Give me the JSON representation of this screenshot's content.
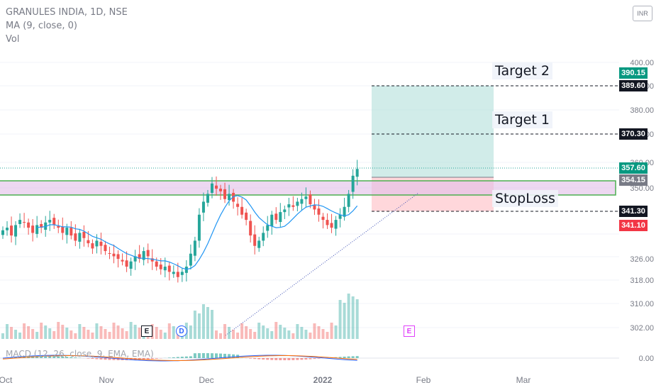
{
  "legend": {
    "symbol": "GRANULES INDIA, 1D, NSE",
    "ma": "MA (9, close, 0)",
    "vol": "Vol"
  },
  "currency_button": "INR",
  "macd_label": "MACD (12, 26, close, 9, EMA, EMA)",
  "notes": {
    "target2": "Target 2",
    "target1": "Target 1",
    "stoploss": "StopLoss"
  },
  "price_tags": [
    {
      "value": "390.15",
      "color": "#089981"
    },
    {
      "value": "389.60",
      "color": "#131722"
    },
    {
      "value": "370.30",
      "color": "#131722"
    },
    {
      "value": "357.60",
      "color": "#089981"
    },
    {
      "value": "354.15",
      "color": "#787b86"
    },
    {
      "value": "341.30",
      "color": "#131722"
    },
    {
      "value": "341.10",
      "color": "#f23645"
    }
  ],
  "events": [
    {
      "label": "E",
      "color": "#131722"
    },
    {
      "label": "D",
      "color": "#2962ff"
    },
    {
      "label": "E",
      "color": "#e040fb"
    }
  ],
  "colors": {
    "up": "#26a69a",
    "down": "#ef5350",
    "ma": "#2196f3",
    "zone_border": "#4caf50",
    "zone_fill": "#e1bee7",
    "target_fill": "#b2dfdb",
    "stop_fill": "#ffcdd2"
  },
  "chart_data": {
    "type": "candlestick",
    "symbol": "GRANULES INDIA",
    "interval": "1D",
    "exchange": "NSE",
    "price_axis_ticks": [
      "400.00",
      "390.00",
      "380.00",
      "370.00",
      "360.00",
      "350.00",
      "326.00",
      "318.00",
      "310.00",
      "302.00",
      "0.00"
    ],
    "time_axis_ticks": [
      "Oct",
      "Nov",
      "Dec",
      "2022",
      "Feb",
      "Mar"
    ],
    "price_levels": {
      "target_2": 389.6,
      "target_1": 370.3,
      "entry": 354.15,
      "stop_loss": 341.3,
      "last_close": 357.6
    },
    "close_approx": [
      334,
      335,
      332,
      336,
      338,
      337,
      335,
      333,
      336,
      335,
      337,
      338,
      336,
      335,
      333,
      335,
      332,
      330,
      333,
      331,
      329,
      327,
      330,
      328,
      326,
      325,
      324,
      323,
      322,
      320,
      322,
      324,
      323,
      326,
      324,
      322,
      320,
      319,
      320,
      318,
      318,
      316,
      318,
      320,
      325,
      330,
      340,
      345,
      348,
      352,
      350,
      349,
      346,
      348,
      345,
      343,
      340,
      338,
      332,
      328,
      330,
      333,
      336,
      340,
      338,
      341,
      342,
      344,
      343,
      345,
      346,
      347,
      344,
      342,
      340,
      338,
      336,
      335,
      338,
      340,
      343,
      348,
      355,
      357.6
    ]
  }
}
